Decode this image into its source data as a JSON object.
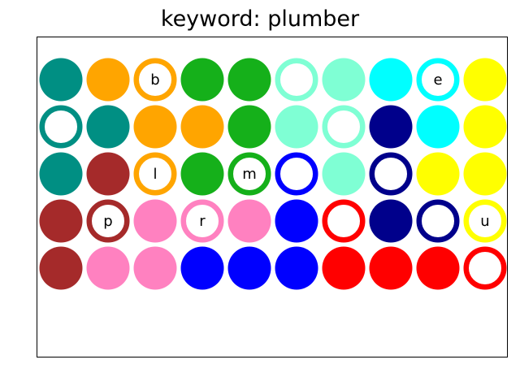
{
  "title": "keyword: plumber",
  "palette": {
    "teal": "#008F83",
    "orange": "#FFA500",
    "green": "#15B01A",
    "mint": "#7FFFD4",
    "cyan": "#00FFFF",
    "yellow": "#FFFF00",
    "navy": "#00008B",
    "brown": "#A52A2A",
    "pink": "#FF81C0",
    "blue": "#0000FF",
    "red": "#FF0000"
  },
  "grid": [
    [
      {
        "color": "teal",
        "style": "filled",
        "letter": ""
      },
      {
        "color": "orange",
        "style": "filled",
        "letter": ""
      },
      {
        "color": "orange",
        "style": "ring",
        "letter": "b"
      },
      {
        "color": "green",
        "style": "filled",
        "letter": ""
      },
      {
        "color": "green",
        "style": "filled",
        "letter": ""
      },
      {
        "color": "mint",
        "style": "ring",
        "letter": ""
      },
      {
        "color": "mint",
        "style": "filled",
        "letter": ""
      },
      {
        "color": "cyan",
        "style": "filled",
        "letter": ""
      },
      {
        "color": "cyan",
        "style": "ring",
        "letter": "e"
      },
      {
        "color": "yellow",
        "style": "filled",
        "letter": ""
      }
    ],
    [
      {
        "color": "teal",
        "style": "ring",
        "letter": ""
      },
      {
        "color": "teal",
        "style": "filled",
        "letter": ""
      },
      {
        "color": "orange",
        "style": "filled",
        "letter": ""
      },
      {
        "color": "orange",
        "style": "filled",
        "letter": ""
      },
      {
        "color": "green",
        "style": "filled",
        "letter": ""
      },
      {
        "color": "mint",
        "style": "filled",
        "letter": ""
      },
      {
        "color": "mint",
        "style": "ring",
        "letter": ""
      },
      {
        "color": "navy",
        "style": "filled",
        "letter": ""
      },
      {
        "color": "cyan",
        "style": "filled",
        "letter": ""
      },
      {
        "color": "yellow",
        "style": "filled",
        "letter": ""
      }
    ],
    [
      {
        "color": "teal",
        "style": "filled",
        "letter": ""
      },
      {
        "color": "brown",
        "style": "filled",
        "letter": ""
      },
      {
        "color": "orange",
        "style": "ring",
        "letter": "l"
      },
      {
        "color": "green",
        "style": "filled",
        "letter": ""
      },
      {
        "color": "green",
        "style": "ring",
        "letter": "m"
      },
      {
        "color": "blue",
        "style": "ring",
        "letter": ""
      },
      {
        "color": "mint",
        "style": "filled",
        "letter": ""
      },
      {
        "color": "navy",
        "style": "ring",
        "letter": ""
      },
      {
        "color": "yellow",
        "style": "filled",
        "letter": ""
      },
      {
        "color": "yellow",
        "style": "filled",
        "letter": ""
      }
    ],
    [
      {
        "color": "brown",
        "style": "filled",
        "letter": ""
      },
      {
        "color": "brown",
        "style": "ring",
        "letter": "p"
      },
      {
        "color": "pink",
        "style": "filled",
        "letter": ""
      },
      {
        "color": "pink",
        "style": "ring",
        "letter": "r"
      },
      {
        "color": "pink",
        "style": "filled",
        "letter": ""
      },
      {
        "color": "blue",
        "style": "filled",
        "letter": ""
      },
      {
        "color": "red",
        "style": "ring",
        "letter": ""
      },
      {
        "color": "navy",
        "style": "filled",
        "letter": ""
      },
      {
        "color": "navy",
        "style": "ring",
        "letter": ""
      },
      {
        "color": "yellow",
        "style": "ring",
        "letter": "u"
      }
    ],
    [
      {
        "color": "brown",
        "style": "filled",
        "letter": ""
      },
      {
        "color": "pink",
        "style": "filled",
        "letter": ""
      },
      {
        "color": "pink",
        "style": "filled",
        "letter": ""
      },
      {
        "color": "blue",
        "style": "filled",
        "letter": ""
      },
      {
        "color": "blue",
        "style": "filled",
        "letter": ""
      },
      {
        "color": "blue",
        "style": "filled",
        "letter": ""
      },
      {
        "color": "red",
        "style": "filled",
        "letter": ""
      },
      {
        "color": "red",
        "style": "filled",
        "letter": ""
      },
      {
        "color": "red",
        "style": "filled",
        "letter": ""
      },
      {
        "color": "red",
        "style": "ring",
        "letter": ""
      }
    ]
  ]
}
